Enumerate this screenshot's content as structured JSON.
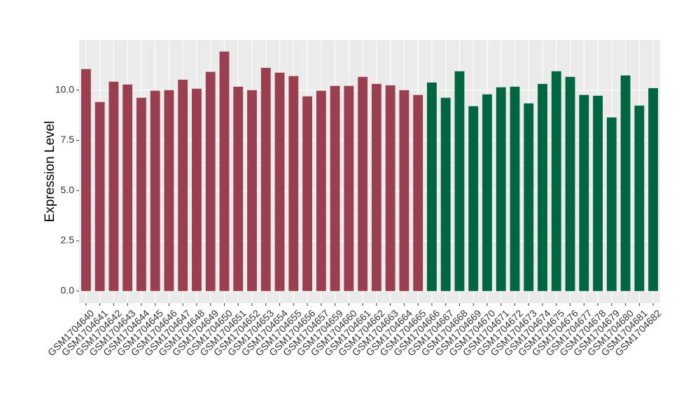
{
  "chart_data": {
    "type": "bar",
    "y_label": "Expression Level",
    "categories": [
      "GSM1704640",
      "GSM1704641",
      "GSM1704642",
      "GSM1704643",
      "GSM1704644",
      "GSM1704645",
      "GSM1704646",
      "GSM1704647",
      "GSM1704648",
      "GSM1704649",
      "GSM1704650",
      "GSM1704651",
      "GSM1704652",
      "GSM1704653",
      "GSM1704654",
      "GSM1704655",
      "GSM1704656",
      "GSM1704657",
      "GSM1704659",
      "GSM1704660",
      "GSM1704661",
      "GSM1704662",
      "GSM1704663",
      "GSM1704664",
      "GSM1704665",
      "GSM1704666",
      "GSM1704667",
      "GSM1704668",
      "GSM1704669",
      "GSM1704670",
      "GSM1704671",
      "GSM1704672",
      "GSM1704673",
      "GSM1704674",
      "GSM1704675",
      "GSM1704676",
      "GSM1704677",
      "GSM1704678",
      "GSM1704679",
      "GSM1704680",
      "GSM1704681",
      "GSM1704682"
    ],
    "values": [
      11.05,
      9.41,
      10.42,
      10.28,
      9.62,
      9.97,
      10.0,
      10.52,
      10.07,
      10.91,
      11.92,
      10.17,
      10.0,
      11.11,
      10.87,
      10.7,
      9.69,
      9.97,
      10.21,
      10.21,
      10.66,
      10.31,
      10.24,
      10.0,
      9.76,
      10.38,
      9.62,
      10.94,
      9.2,
      9.79,
      10.14,
      10.17,
      9.34,
      10.31,
      10.94,
      10.66,
      9.76,
      9.72,
      8.64,
      10.73,
      9.23,
      10.1
    ],
    "colors": [
      "#993f4f",
      "#993f4f",
      "#993f4f",
      "#993f4f",
      "#993f4f",
      "#993f4f",
      "#993f4f",
      "#993f4f",
      "#993f4f",
      "#993f4f",
      "#993f4f",
      "#993f4f",
      "#993f4f",
      "#993f4f",
      "#993f4f",
      "#993f4f",
      "#993f4f",
      "#993f4f",
      "#993f4f",
      "#993f4f",
      "#993f4f",
      "#993f4f",
      "#993f4f",
      "#993f4f",
      "#993f4f",
      "#006641",
      "#006641",
      "#006641",
      "#006641",
      "#006641",
      "#006641",
      "#006641",
      "#006641",
      "#006641",
      "#006641",
      "#006641",
      "#006641",
      "#006641",
      "#006641",
      "#006641",
      "#006641",
      "#006641"
    ],
    "ylim": [
      -0.6,
      12.5
    ],
    "yticks": [
      {
        "value": 0,
        "label": "0.0"
      },
      2.5,
      {
        "value": 5,
        "label": "5.0"
      },
      7.5,
      {
        "value": 10,
        "label": "10.0"
      }
    ],
    "grid": true
  }
}
